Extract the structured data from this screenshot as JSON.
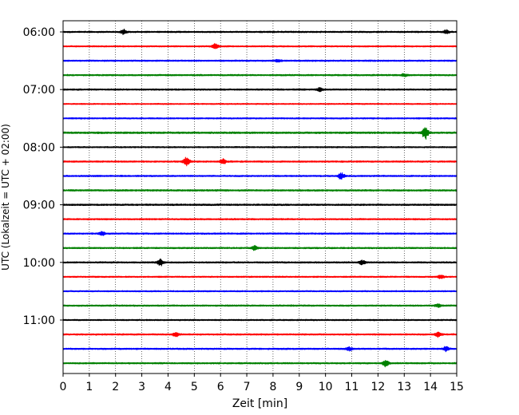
{
  "chart_data": {
    "type": "line",
    "title": "",
    "xlabel": "Zeit  [min]",
    "ylabel": "UTC (Lokalzeit = UTC + 02:00)",
    "xlim": [
      0,
      15
    ],
    "x_ticks": [
      0,
      1,
      2,
      3,
      4,
      5,
      6,
      7,
      8,
      9,
      10,
      11,
      12,
      13,
      14,
      15
    ],
    "x_tick_labels": [
      "0",
      "1",
      "2",
      "3",
      "4",
      "5",
      "6",
      "7",
      "8",
      "9",
      "10",
      "11",
      "12",
      "13",
      "14",
      "15"
    ],
    "y_tick_labels": [
      "06:00",
      "07:00",
      "08:00",
      "09:00",
      "10:00",
      "11:00"
    ],
    "y_tick_trace_index": [
      0,
      4,
      8,
      12,
      16,
      20
    ],
    "grid": {
      "vertical": true,
      "style": "dotted"
    },
    "trace_duration_min": 15,
    "color_cycle": [
      "#000000",
      "#ff0000",
      "#0000ff",
      "#008000"
    ],
    "traces": [
      {
        "start": "06:00",
        "color": "#000000",
        "amplitude": 0.5,
        "events": [
          {
            "t": 2.3,
            "amp": 1.4
          },
          {
            "t": 14.6,
            "amp": 1.1
          }
        ]
      },
      {
        "start": "06:15",
        "color": "#ff0000",
        "amplitude": 0.45,
        "events": [
          {
            "t": 5.8,
            "amp": 1.9
          }
        ]
      },
      {
        "start": "06:30",
        "color": "#0000ff",
        "amplitude": 0.5,
        "events": [
          {
            "t": 8.2,
            "amp": 0.9
          }
        ]
      },
      {
        "start": "06:45",
        "color": "#008000",
        "amplitude": 0.5,
        "events": [
          {
            "t": 13.0,
            "amp": 0.8
          }
        ]
      },
      {
        "start": "07:00",
        "color": "#000000",
        "amplitude": 0.5,
        "events": [
          {
            "t": 9.8,
            "amp": 1.0
          }
        ]
      },
      {
        "start": "07:15",
        "color": "#ff0000",
        "amplitude": 0.4,
        "events": []
      },
      {
        "start": "07:30",
        "color": "#0000ff",
        "amplitude": 0.45,
        "events": []
      },
      {
        "start": "07:45",
        "color": "#008000",
        "amplitude": 0.6,
        "events": [
          {
            "t": 13.8,
            "amp": 4.0
          }
        ]
      },
      {
        "start": "08:00",
        "color": "#000000",
        "amplitude": 0.45,
        "events": []
      },
      {
        "start": "08:15",
        "color": "#ff0000",
        "amplitude": 0.5,
        "events": [
          {
            "t": 4.7,
            "amp": 3.0
          },
          {
            "t": 6.1,
            "amp": 1.6
          }
        ]
      },
      {
        "start": "08:30",
        "color": "#0000ff",
        "amplitude": 0.5,
        "events": [
          {
            "t": 10.6,
            "amp": 2.3
          }
        ]
      },
      {
        "start": "08:45",
        "color": "#008000",
        "amplitude": 0.55,
        "events": []
      },
      {
        "start": "09:00",
        "color": "#000000",
        "amplitude": 0.55,
        "events": []
      },
      {
        "start": "09:15",
        "color": "#ff0000",
        "amplitude": 0.5,
        "events": []
      },
      {
        "start": "09:30",
        "color": "#0000ff",
        "amplitude": 0.5,
        "events": [
          {
            "t": 1.5,
            "amp": 1.1
          }
        ]
      },
      {
        "start": "09:45",
        "color": "#008000",
        "amplitude": 0.5,
        "events": [
          {
            "t": 7.3,
            "amp": 1.5
          }
        ]
      },
      {
        "start": "10:00",
        "color": "#000000",
        "amplitude": 0.5,
        "events": [
          {
            "t": 3.7,
            "amp": 2.2
          },
          {
            "t": 11.4,
            "amp": 1.5
          }
        ]
      },
      {
        "start": "10:15",
        "color": "#ff0000",
        "amplitude": 0.45,
        "events": [
          {
            "t": 14.4,
            "amp": 1.2
          }
        ]
      },
      {
        "start": "10:30",
        "color": "#0000ff",
        "amplitude": 0.45,
        "events": []
      },
      {
        "start": "10:45",
        "color": "#008000",
        "amplitude": 0.5,
        "events": [
          {
            "t": 14.3,
            "amp": 1.0
          }
        ]
      },
      {
        "start": "11:00",
        "color": "#000000",
        "amplitude": 0.45,
        "events": []
      },
      {
        "start": "11:15",
        "color": "#ff0000",
        "amplitude": 0.5,
        "events": [
          {
            "t": 4.3,
            "amp": 1.6
          },
          {
            "t": 14.3,
            "amp": 1.6
          }
        ]
      },
      {
        "start": "11:30",
        "color": "#0000ff",
        "amplitude": 0.5,
        "events": [
          {
            "t": 10.9,
            "amp": 1.2
          },
          {
            "t": 14.6,
            "amp": 1.5
          }
        ]
      },
      {
        "start": "11:45",
        "color": "#008000",
        "amplitude": 0.5,
        "events": [
          {
            "t": 12.3,
            "amp": 2.3
          }
        ]
      }
    ]
  }
}
